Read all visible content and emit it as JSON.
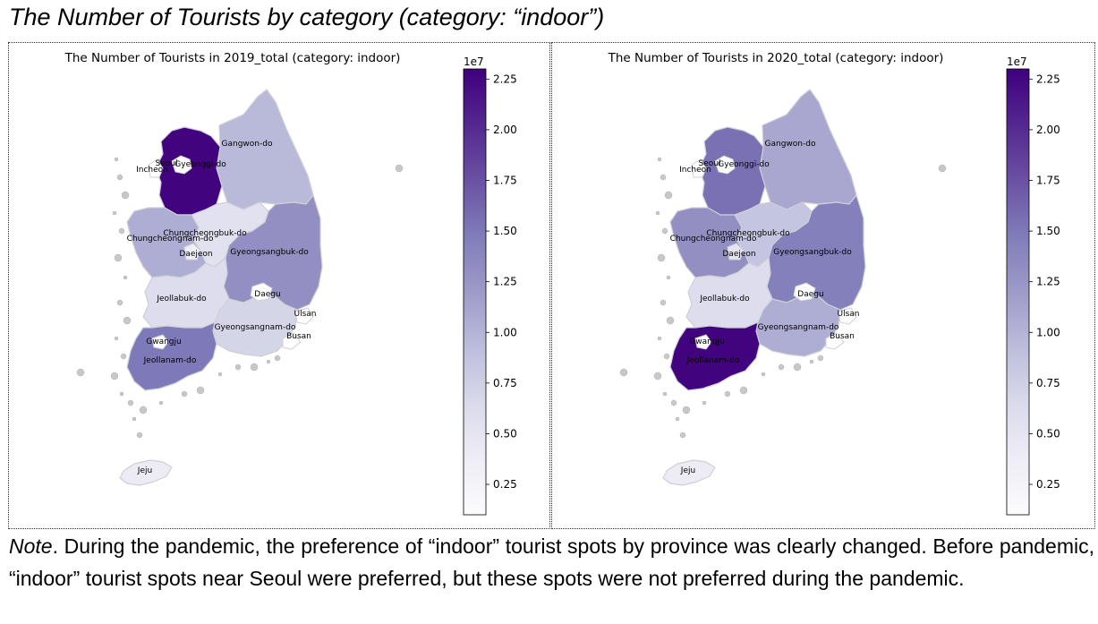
{
  "figure_title": "The Number of Tourists by category (category: “indoor”)",
  "note": {
    "label": "Note",
    "text": ". During the pandemic, the preference of “indoor” tourist spots by province was clearly changed. Before pandemic, “indoor” tourist spots near Seoul were preferred, but these spots were not preferred during the pandemic."
  },
  "colormap": {
    "name": "Purples",
    "stops": [
      "#fcfbfd",
      "#efedf5",
      "#dadaeb",
      "#bcbddc",
      "#9e9ac8",
      "#807dba",
      "#6a51a3",
      "#54278f",
      "#3f007d"
    ],
    "range": [
      0.1,
      2.3
    ],
    "exponent_label": "1e7",
    "ticks": [
      0.25,
      0.5,
      0.75,
      1.0,
      1.25,
      1.5,
      1.75,
      2.0,
      2.25
    ],
    "tick_labels": [
      "0.25",
      "0.50",
      "0.75",
      "1.00",
      "1.25",
      "1.50",
      "1.75",
      "2.00",
      "2.25"
    ]
  },
  "no_data_color": "#c8c8c8",
  "maps": [
    {
      "title": "The Number of Tourists in 2019_total (category: indoor)",
      "values": {
        "Gyeonggi-do": 2.28,
        "Gangwon-do": 0.95,
        "Chungcheongbuk-do": 0.55,
        "Chungcheongnam-do": 1.05,
        "Gyeongsangbuk-do": 1.3,
        "Jeollabuk-do": 0.6,
        "Gyeongsangnam-do": 0.7,
        "Jeollanam-do": 1.5,
        "Jeju": 0.4,
        "Seoul": 2.28,
        "Incheon": 2.28
      }
    },
    {
      "title": "The Number of Tourists in 2020_total (category: indoor)",
      "values": {
        "Gyeonggi-do": 1.55,
        "Gangwon-do": 1.1,
        "Chungcheongbuk-do": 0.85,
        "Chungcheongnam-do": 1.3,
        "Gyeongsangbuk-do": 1.45,
        "Jeollabuk-do": 0.6,
        "Gyeongsangnam-do": 1.05,
        "Jeollanam-do": 2.28,
        "Jeju": 0.4,
        "Seoul": 1.55,
        "Incheon": 1.55
      }
    }
  ],
  "labels": [
    "Gangwon-do",
    "Seoul",
    "Gyeonggi-do",
    "Incheon",
    "Chungcheongbuk-do",
    "Chungcheongnam-do",
    "Daejeon",
    "Gyeongsangbuk-do",
    "Daegu",
    "Jeollabuk-do",
    "Ulsan",
    "Gyeongsangnam-do",
    "Busan",
    "Gwangju",
    "Jeollanam-do",
    "Jeju"
  ]
}
